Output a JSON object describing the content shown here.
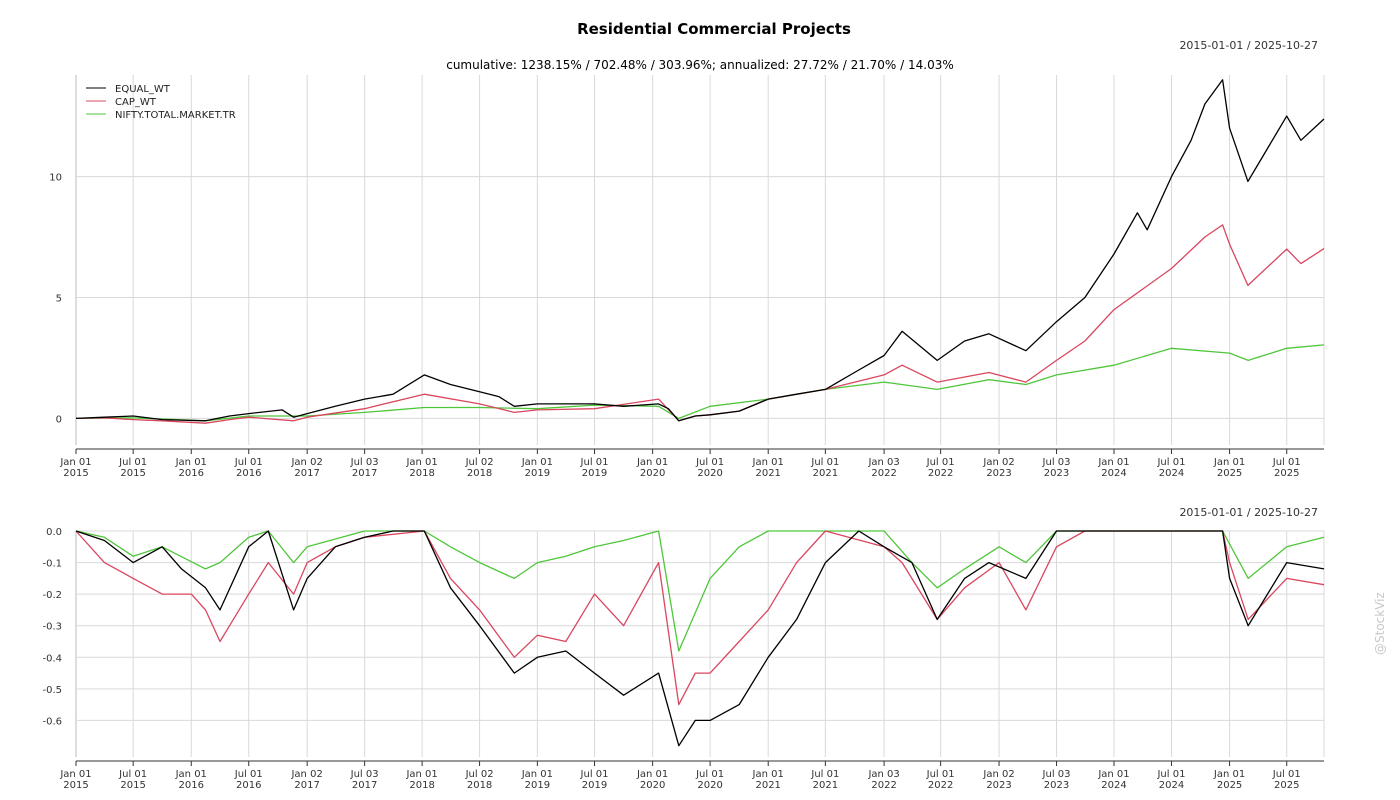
{
  "watermark": "@StockViz",
  "chart_data": [
    {
      "type": "line",
      "title": "Residential Commercial Projects",
      "subtitle": "cumulative: 1238.15% / 702.48% / 303.96%; annualized: 27.72% / 21.70% / 14.03%",
      "date_range": "2015-01-01 / 2025-10-27",
      "legend_position": "top-left",
      "grid": true,
      "ylim": [
        -1.1,
        14.2
      ],
      "yticks": [
        0,
        5,
        10
      ],
      "xlim": [
        "2015-01-01",
        "2025-10-27"
      ],
      "xticks": [
        {
          "date": "2015-01-01",
          "line1": "Jan 01",
          "line2": "2015"
        },
        {
          "date": "2015-07-01",
          "line1": "Jul 01",
          "line2": "2015"
        },
        {
          "date": "2016-01-01",
          "line1": "Jan 01",
          "line2": "2016"
        },
        {
          "date": "2016-07-01",
          "line1": "Jul 01",
          "line2": "2016"
        },
        {
          "date": "2017-01-02",
          "line1": "Jan 02",
          "line2": "2017"
        },
        {
          "date": "2017-07-03",
          "line1": "Jul 03",
          "line2": "2017"
        },
        {
          "date": "2018-01-01",
          "line1": "Jan 01",
          "line2": "2018"
        },
        {
          "date": "2018-07-02",
          "line1": "Jul 02",
          "line2": "2018"
        },
        {
          "date": "2019-01-01",
          "line1": "Jan 01",
          "line2": "2019"
        },
        {
          "date": "2019-07-01",
          "line1": "Jul 01",
          "line2": "2019"
        },
        {
          "date": "2020-01-01",
          "line1": "Jan 01",
          "line2": "2020"
        },
        {
          "date": "2020-07-01",
          "line1": "Jul 01",
          "line2": "2020"
        },
        {
          "date": "2021-01-01",
          "line1": "Jan 01",
          "line2": "2021"
        },
        {
          "date": "2021-07-01",
          "line1": "Jul 01",
          "line2": "2021"
        },
        {
          "date": "2022-01-03",
          "line1": "Jan 03",
          "line2": "2022"
        },
        {
          "date": "2022-07-01",
          "line1": "Jul 01",
          "line2": "2022"
        },
        {
          "date": "2023-01-02",
          "line1": "Jan 02",
          "line2": "2023"
        },
        {
          "date": "2023-07-03",
          "line1": "Jul 03",
          "line2": "2023"
        },
        {
          "date": "2024-01-01",
          "line1": "Jan 01",
          "line2": "2024"
        },
        {
          "date": "2024-07-01",
          "line1": "Jul 01",
          "line2": "2024"
        },
        {
          "date": "2025-01-01",
          "line1": "Jan 01",
          "line2": "2025"
        },
        {
          "date": "2025-07-01",
          "line1": "Jul 01",
          "line2": "2025"
        }
      ],
      "series": [
        {
          "name": "EQUAL_WT",
          "color": "#000000",
          "x": [
            "2015-01-01",
            "2015-04-01",
            "2015-07-01",
            "2015-10-01",
            "2016-02-15",
            "2016-05-01",
            "2016-07-01",
            "2016-10-15",
            "2016-11-20",
            "2017-01-02",
            "2017-04-01",
            "2017-07-03",
            "2017-10-01",
            "2018-01-08",
            "2018-04-01",
            "2018-07-02",
            "2018-09-01",
            "2018-10-20",
            "2019-01-01",
            "2019-04-01",
            "2019-07-01",
            "2019-10-01",
            "2020-01-20",
            "2020-02-20",
            "2020-03-24",
            "2020-05-15",
            "2020-07-01",
            "2020-10-01",
            "2021-01-01",
            "2021-04-01",
            "2021-07-01",
            "2021-10-15",
            "2022-01-03",
            "2022-03-01",
            "2022-06-20",
            "2022-09-15",
            "2022-12-01",
            "2023-03-28",
            "2023-07-03",
            "2023-10-01",
            "2024-01-01",
            "2024-03-15",
            "2024-04-15",
            "2024-07-01",
            "2024-09-01",
            "2024-10-15",
            "2024-12-10",
            "2025-01-01",
            "2025-02-28",
            "2025-04-01",
            "2025-07-01",
            "2025-08-15",
            "2025-10-27"
          ],
          "y": [
            0,
            0.05,
            0.1,
            -0.05,
            -0.1,
            0.1,
            0.2,
            0.35,
            0.05,
            0.2,
            0.5,
            0.8,
            1.0,
            1.8,
            1.4,
            1.1,
            0.9,
            0.5,
            0.6,
            0.6,
            0.6,
            0.5,
            0.6,
            0.4,
            -0.1,
            0.1,
            0.15,
            0.3,
            0.8,
            1.0,
            1.2,
            2.0,
            2.6,
            3.6,
            2.4,
            3.2,
            3.5,
            2.8,
            4.0,
            5.0,
            6.8,
            8.5,
            7.8,
            10.0,
            11.5,
            13.0,
            14.0,
            12.0,
            9.8,
            10.5,
            12.5,
            11.5,
            12.38
          ]
        },
        {
          "name": "CAP_WT",
          "color": "#d9475f",
          "x": [
            "2015-01-01",
            "2015-04-01",
            "2015-07-01",
            "2015-10-01",
            "2016-02-15",
            "2016-05-01",
            "2016-07-01",
            "2016-11-20",
            "2017-01-02",
            "2017-07-03",
            "2018-01-08",
            "2018-07-02",
            "2018-10-20",
            "2019-01-01",
            "2019-07-01",
            "2020-01-20",
            "2020-03-24",
            "2020-05-15",
            "2020-07-01",
            "2020-10-01",
            "2021-01-01",
            "2021-07-01",
            "2022-01-03",
            "2022-03-01",
            "2022-06-20",
            "2022-12-01",
            "2023-03-28",
            "2023-07-03",
            "2023-10-01",
            "2024-01-01",
            "2024-07-01",
            "2024-10-15",
            "2024-12-10",
            "2025-01-01",
            "2025-02-28",
            "2025-07-01",
            "2025-08-15",
            "2025-10-27"
          ],
          "y": [
            0,
            0.02,
            -0.05,
            -0.1,
            -0.2,
            -0.05,
            0.05,
            -0.1,
            0.05,
            0.4,
            1.0,
            0.6,
            0.25,
            0.35,
            0.4,
            0.8,
            -0.1,
            0.1,
            0.15,
            0.3,
            0.8,
            1.2,
            1.8,
            2.2,
            1.5,
            1.9,
            1.5,
            2.4,
            3.2,
            4.5,
            6.2,
            7.5,
            8.0,
            7.2,
            5.5,
            7.0,
            6.4,
            7.02
          ]
        },
        {
          "name": "NIFTY.TOTAL.MARKET.TR",
          "color": "#4fc63a",
          "x": [
            "2015-01-01",
            "2015-07-01",
            "2016-02-15",
            "2016-07-01",
            "2017-01-02",
            "2017-07-03",
            "2018-01-08",
            "2018-07-02",
            "2019-01-01",
            "2019-07-01",
            "2020-01-20",
            "2020-03-24",
            "2020-07-01",
            "2021-01-01",
            "2021-07-01",
            "2022-01-03",
            "2022-06-20",
            "2022-12-01",
            "2023-03-28",
            "2023-07-03",
            "2024-01-01",
            "2024-07-01",
            "2025-01-01",
            "2025-03-01",
            "2025-07-01",
            "2025-10-27"
          ],
          "y": [
            0,
            0.02,
            -0.1,
            0.1,
            0.1,
            0.25,
            0.45,
            0.45,
            0.4,
            0.55,
            0.5,
            0.0,
            0.5,
            0.8,
            1.2,
            1.5,
            1.2,
            1.6,
            1.4,
            1.8,
            2.2,
            2.9,
            2.7,
            2.4,
            2.9,
            3.04
          ]
        }
      ]
    },
    {
      "type": "line",
      "title": "",
      "date_range": "2015-01-01 / 2025-10-27",
      "grid": true,
      "ylim": [
        -0.7,
        0.0
      ],
      "yticks": [
        0.0,
        -0.1,
        -0.2,
        -0.3,
        -0.4,
        -0.5,
        -0.6
      ],
      "ytick_labels": [
        "0.0",
        "-0.1",
        "-0.2",
        "-0.3",
        "-0.4",
        "-0.5",
        "-0.6"
      ],
      "xlim": [
        "2015-01-01",
        "2025-10-27"
      ],
      "series": [
        {
          "name": "EQUAL_WT",
          "color": "#000000",
          "x": [
            "2015-01-01",
            "2015-04-01",
            "2015-07-01",
            "2015-10-01",
            "2015-12-01",
            "2016-02-15",
            "2016-04-01",
            "2016-07-01",
            "2016-09-01",
            "2016-11-20",
            "2017-01-02",
            "2017-04-01",
            "2017-07-03",
            "2017-10-01",
            "2018-01-08",
            "2018-04-01",
            "2018-07-02",
            "2018-10-20",
            "2019-01-01",
            "2019-04-01",
            "2019-07-01",
            "2019-10-01",
            "2020-01-20",
            "2020-03-24",
            "2020-05-15",
            "2020-07-01",
            "2020-10-01",
            "2021-01-01",
            "2021-04-01",
            "2021-07-01",
            "2021-10-15",
            "2022-01-03",
            "2022-04-01",
            "2022-06-20",
            "2022-09-15",
            "2022-12-01",
            "2023-03-28",
            "2023-07-03",
            "2024-01-01",
            "2024-07-01",
            "2024-12-10",
            "2025-01-01",
            "2025-03-01",
            "2025-05-01",
            "2025-07-01",
            "2025-10-27"
          ],
          "y": [
            0,
            -0.03,
            -0.1,
            -0.05,
            -0.12,
            -0.18,
            -0.25,
            -0.05,
            0,
            -0.25,
            -0.15,
            -0.05,
            -0.02,
            0,
            0,
            -0.18,
            -0.3,
            -0.45,
            -0.4,
            -0.38,
            -0.45,
            -0.52,
            -0.45,
            -0.68,
            -0.6,
            -0.6,
            -0.55,
            -0.4,
            -0.28,
            -0.1,
            0,
            -0.05,
            -0.1,
            -0.28,
            -0.15,
            -0.1,
            -0.15,
            0,
            0,
            0,
            0,
            -0.15,
            -0.3,
            -0.2,
            -0.1,
            -0.12
          ]
        },
        {
          "name": "CAP_WT",
          "color": "#d9475f",
          "x": [
            "2015-01-01",
            "2015-04-01",
            "2015-07-01",
            "2015-10-01",
            "2016-01-01",
            "2016-02-15",
            "2016-04-01",
            "2016-07-01",
            "2016-09-01",
            "2016-11-20",
            "2017-01-02",
            "2017-04-01",
            "2017-07-03",
            "2018-01-08",
            "2018-04-01",
            "2018-07-02",
            "2018-10-20",
            "2019-01-01",
            "2019-04-01",
            "2019-07-01",
            "2019-10-01",
            "2020-01-20",
            "2020-03-24",
            "2020-05-15",
            "2020-07-01",
            "2020-10-01",
            "2021-01-01",
            "2021-04-01",
            "2021-07-01",
            "2022-01-03",
            "2022-03-01",
            "2022-06-20",
            "2022-09-15",
            "2023-01-02",
            "2023-03-28",
            "2023-07-03",
            "2023-10-01",
            "2024-01-01",
            "2024-07-01",
            "2024-12-10",
            "2025-01-01",
            "2025-03-01",
            "2025-07-01",
            "2025-10-27"
          ],
          "y": [
            0,
            -0.1,
            -0.15,
            -0.2,
            -0.2,
            -0.25,
            -0.35,
            -0.2,
            -0.1,
            -0.2,
            -0.1,
            -0.05,
            -0.02,
            0,
            -0.15,
            -0.25,
            -0.4,
            -0.33,
            -0.35,
            -0.2,
            -0.3,
            -0.1,
            -0.55,
            -0.45,
            -0.45,
            -0.35,
            -0.25,
            -0.1,
            0,
            -0.05,
            -0.1,
            -0.28,
            -0.18,
            -0.1,
            -0.25,
            -0.05,
            0,
            0,
            0,
            0,
            -0.1,
            -0.28,
            -0.15,
            -0.17
          ]
        },
        {
          "name": "NIFTY.TOTAL.MARKET.TR",
          "color": "#4fc63a",
          "x": [
            "2015-01-01",
            "2015-04-01",
            "2015-07-01",
            "2015-10-01",
            "2016-02-15",
            "2016-04-01",
            "2016-07-01",
            "2016-09-01",
            "2016-11-20",
            "2017-01-02",
            "2017-07-03",
            "2018-01-08",
            "2018-04-01",
            "2018-07-02",
            "2018-10-20",
            "2019-01-01",
            "2019-04-01",
            "2019-07-01",
            "2019-10-01",
            "2020-01-20",
            "2020-03-24",
            "2020-07-01",
            "2020-10-01",
            "2021-01-01",
            "2021-07-01",
            "2022-01-03",
            "2022-04-01",
            "2022-06-20",
            "2022-09-15",
            "2023-01-02",
            "2023-03-28",
            "2023-07-03",
            "2024-01-01",
            "2024-07-01",
            "2024-12-10",
            "2025-03-01",
            "2025-07-01",
            "2025-10-27"
          ],
          "y": [
            0,
            -0.02,
            -0.08,
            -0.05,
            -0.12,
            -0.1,
            -0.02,
            0,
            -0.1,
            -0.05,
            0,
            0,
            -0.05,
            -0.1,
            -0.15,
            -0.1,
            -0.08,
            -0.05,
            -0.03,
            0,
            -0.38,
            -0.15,
            -0.05,
            0,
            0,
            0,
            -0.1,
            -0.18,
            -0.12,
            -0.05,
            -0.1,
            0,
            0,
            0,
            0,
            -0.15,
            -0.05,
            -0.02
          ]
        }
      ]
    }
  ]
}
